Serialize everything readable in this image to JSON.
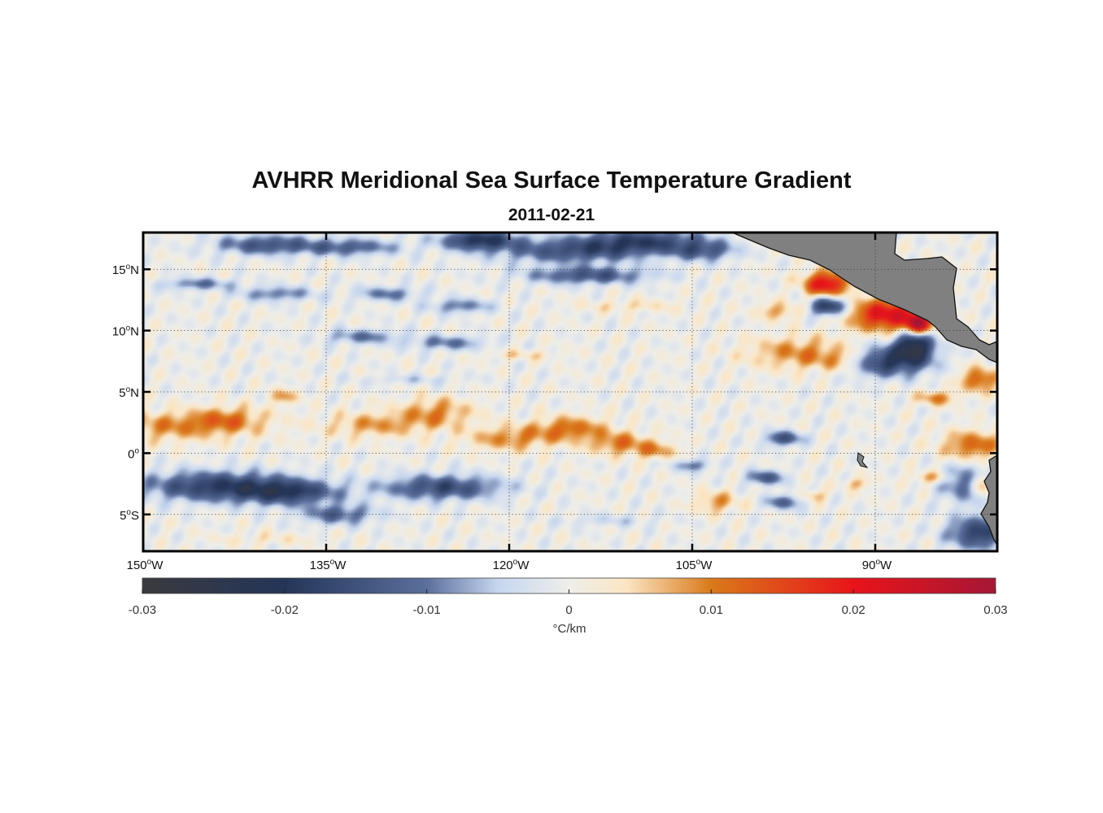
{
  "title": "AVHRR Meridional Sea Surface Temperature Gradient",
  "subtitle": "2011-02-21",
  "chart_data": {
    "type": "heatmap",
    "title": "AVHRR Meridional Sea Surface Temperature Gradient",
    "subtitle": "2011-02-21",
    "lon_range": [
      -150,
      -80
    ],
    "lat_range": [
      -8,
      18
    ],
    "lon_ticks": [
      {
        "value": -150,
        "deg": "150",
        "hemi": "W"
      },
      {
        "value": -135,
        "deg": "135",
        "hemi": "W"
      },
      {
        "value": -120,
        "deg": "120",
        "hemi": "W"
      },
      {
        "value": -105,
        "deg": "105",
        "hemi": "W"
      },
      {
        "value": -90,
        "deg": "90",
        "hemi": "W"
      }
    ],
    "lat_ticks": [
      {
        "value": 15,
        "deg": "15",
        "hemi": "N"
      },
      {
        "value": 10,
        "deg": "10",
        "hemi": "N"
      },
      {
        "value": 5,
        "deg": "5",
        "hemi": "N"
      },
      {
        "value": 0,
        "deg": "0",
        "hemi": ""
      },
      {
        "value": -5,
        "deg": "5",
        "hemi": "S"
      }
    ],
    "grid": "dotted",
    "colorbar": {
      "label": "°C/km",
      "range": [
        -0.03,
        0.03
      ],
      "ticks": [
        {
          "value": -0.03,
          "label": "-0.03"
        },
        {
          "value": -0.02,
          "label": "-0.02"
        },
        {
          "value": -0.01,
          "label": "-0.01"
        },
        {
          "value": 0,
          "label": "0"
        },
        {
          "value": 0.01,
          "label": "0.01"
        },
        {
          "value": 0.02,
          "label": "0.02"
        },
        {
          "value": 0.03,
          "label": "0.03"
        }
      ],
      "stops": [
        {
          "value": -0.03,
          "color": "#3a3a3e"
        },
        {
          "value": -0.02,
          "color": "#243558"
        },
        {
          "value": -0.01,
          "color": "#5a6f9c"
        },
        {
          "value": -0.005,
          "color": "#c6d6ef"
        },
        {
          "value": 0,
          "color": "#eeeeea"
        },
        {
          "value": 0.004,
          "color": "#fbe6c4"
        },
        {
          "value": 0.01,
          "color": "#d97a1a"
        },
        {
          "value": 0.02,
          "color": "#e8141a"
        },
        {
          "value": 0.03,
          "color": "#a51735"
        }
      ]
    },
    "land_color": "#808080",
    "features": [
      {
        "lon": -147.5,
        "lat": 2.2,
        "rl": 6.0,
        "rt": 1.2,
        "v": 0.009
      },
      {
        "lon": -143.0,
        "lat": 2.8,
        "rl": 3.0,
        "rt": 1.0,
        "v": 0.008
      },
      {
        "lon": -138.5,
        "lat": 4.6,
        "rl": 1.2,
        "rt": 0.6,
        "v": 0.008
      },
      {
        "lon": -131.0,
        "lat": 2.3,
        "rl": 4.0,
        "rt": 1.0,
        "v": 0.008
      },
      {
        "lon": -126.0,
        "lat": 3.3,
        "rl": 3.0,
        "rt": 1.2,
        "v": 0.009
      },
      {
        "lon": -120.0,
        "lat": 1.2,
        "rl": 3.5,
        "rt": 1.0,
        "v": 0.009
      },
      {
        "lon": -115.0,
        "lat": 2.0,
        "rl": 3.0,
        "rt": 1.0,
        "v": 0.011
      },
      {
        "lon": -111.0,
        "lat": 0.8,
        "rl": 2.5,
        "rt": 0.9,
        "v": 0.01
      },
      {
        "lon": -108.0,
        "lat": 0.2,
        "rl": 1.8,
        "rt": 0.7,
        "v": 0.008
      },
      {
        "lon": -103.0,
        "lat": -4.0,
        "rl": 1.8,
        "rt": 0.9,
        "v": 0.008
      },
      {
        "lon": -96.5,
        "lat": 8.2,
        "rl": 4.0,
        "rt": 1.3,
        "v": 0.009
      },
      {
        "lon": -98.0,
        "lat": 11.6,
        "rl": 1.6,
        "rt": 0.7,
        "v": 0.008
      },
      {
        "lon": -94.0,
        "lat": 13.8,
        "rl": 1.8,
        "rt": 1.0,
        "v": 0.022
      },
      {
        "lon": -91.9,
        "lat": 15.6,
        "rl": 0.5,
        "rt": 0.6,
        "v": 0.02
      },
      {
        "lon": -89.0,
        "lat": 11.3,
        "rl": 3.0,
        "rt": 1.3,
        "v": 0.022
      },
      {
        "lon": -86.5,
        "lat": 10.5,
        "rl": 1.0,
        "rt": 0.8,
        "v": 0.025
      },
      {
        "lon": -92.5,
        "lat": 7.6,
        "rl": 2.5,
        "rt": 1.0,
        "v": 0.01
      },
      {
        "lon": -85.0,
        "lat": 4.5,
        "rl": 1.5,
        "rt": 0.6,
        "v": 0.01
      },
      {
        "lon": -81.5,
        "lat": 6.0,
        "rl": 1.5,
        "rt": 1.0,
        "v": 0.013
      },
      {
        "lon": -82.0,
        "lat": 0.6,
        "rl": 2.5,
        "rt": 1.2,
        "v": 0.012
      },
      {
        "lon": -81.2,
        "lat": -2.6,
        "rl": 1.0,
        "rt": 1.0,
        "v": 0.018
      },
      {
        "lon": -85.5,
        "lat": -2.0,
        "rl": 1.5,
        "rt": 0.5,
        "v": 0.008
      },
      {
        "lon": -95.0,
        "lat": -3.5,
        "rl": 1.0,
        "rt": 0.5,
        "v": 0.007
      },
      {
        "lon": -91.5,
        "lat": -2.5,
        "rl": 1.0,
        "rt": 0.5,
        "v": 0.007
      },
      {
        "lon": -86.5,
        "lat": 14.5,
        "rl": 1.2,
        "rt": 0.5,
        "v": -0.012
      },
      {
        "lon": -93.8,
        "lat": 12.0,
        "rl": 1.5,
        "rt": 0.8,
        "v": -0.02
      },
      {
        "lon": -89.2,
        "lat": 7.5,
        "rl": 3.5,
        "rt": 1.2,
        "v": -0.02
      },
      {
        "lon": -86.8,
        "lat": 8.8,
        "rl": 1.5,
        "rt": 1.2,
        "v": -0.024
      },
      {
        "lon": -97.5,
        "lat": 1.2,
        "rl": 1.5,
        "rt": 0.6,
        "v": -0.015
      },
      {
        "lon": -99.0,
        "lat": -2.0,
        "rl": 1.5,
        "rt": 0.6,
        "v": -0.014
      },
      {
        "lon": -97.5,
        "lat": -4.0,
        "rl": 1.5,
        "rt": 0.6,
        "v": -0.012
      },
      {
        "lon": -82.0,
        "lat": -2.5,
        "rl": 2.5,
        "rt": 1.5,
        "v": -0.014
      },
      {
        "lon": -81.5,
        "lat": -6.5,
        "rl": 2.5,
        "rt": 1.3,
        "v": -0.018
      },
      {
        "lon": -105.0,
        "lat": -1.0,
        "rl": 1.5,
        "rt": 0.5,
        "v": -0.01
      },
      {
        "lon": -109.0,
        "lat": 17.3,
        "rl": 5.0,
        "rt": 1.0,
        "v": -0.016
      },
      {
        "lon": -115.0,
        "lat": 16.5,
        "rl": 6.0,
        "rt": 1.0,
        "v": -0.014
      },
      {
        "lon": -122.5,
        "lat": 17.4,
        "rl": 3.0,
        "rt": 0.8,
        "v": -0.02
      },
      {
        "lon": -113.5,
        "lat": 14.5,
        "rl": 5.0,
        "rt": 0.7,
        "v": -0.014
      },
      {
        "lon": -104.0,
        "lat": 16.5,
        "rl": 2.5,
        "rt": 0.8,
        "v": -0.012
      },
      {
        "lon": -133.0,
        "lat": 16.8,
        "rl": 4.0,
        "rt": 0.7,
        "v": -0.012
      },
      {
        "lon": -140.0,
        "lat": 17.0,
        "rl": 4.0,
        "rt": 0.8,
        "v": -0.014
      },
      {
        "lon": -145.5,
        "lat": 13.8,
        "rl": 3.0,
        "rt": 0.5,
        "v": -0.01
      },
      {
        "lon": -139.0,
        "lat": 13.0,
        "rl": 3.0,
        "rt": 0.6,
        "v": -0.01
      },
      {
        "lon": -130.0,
        "lat": 13.0,
        "rl": 2.5,
        "rt": 0.6,
        "v": -0.01
      },
      {
        "lon": -124.0,
        "lat": 12.0,
        "rl": 2.5,
        "rt": 0.6,
        "v": -0.01
      },
      {
        "lon": -132.0,
        "lat": 9.5,
        "rl": 3.0,
        "rt": 0.6,
        "v": -0.01
      },
      {
        "lon": -125.0,
        "lat": 9.0,
        "rl": 3.0,
        "rt": 0.6,
        "v": -0.01
      },
      {
        "lon": -144.0,
        "lat": -2.7,
        "rl": 6.0,
        "rt": 1.2,
        "v": -0.018
      },
      {
        "lon": -138.0,
        "lat": -3.2,
        "rl": 4.0,
        "rt": 1.0,
        "v": -0.016
      },
      {
        "lon": -125.5,
        "lat": -2.8,
        "rl": 5.0,
        "rt": 1.0,
        "v": -0.016
      },
      {
        "lon": -134.0,
        "lat": -5.0,
        "rl": 3.0,
        "rt": 0.8,
        "v": -0.012
      },
      {
        "lon": -119.0,
        "lat": 8.0,
        "rl": 3.0,
        "rt": 0.4,
        "v": 0.004
      },
      {
        "lon": -110.0,
        "lat": 12.0,
        "rl": 4.0,
        "rt": 0.5,
        "v": 0.004
      },
      {
        "lon": -128.0,
        "lat": 6.0,
        "rl": 4.0,
        "rt": 0.4,
        "v": -0.004
      },
      {
        "lon": -112.0,
        "lat": -5.5,
        "rl": 4.0,
        "rt": 0.5,
        "v": -0.004
      },
      {
        "lon": -140.0,
        "lat": -7.0,
        "rl": 4.0,
        "rt": 0.5,
        "v": 0.003
      }
    ]
  }
}
